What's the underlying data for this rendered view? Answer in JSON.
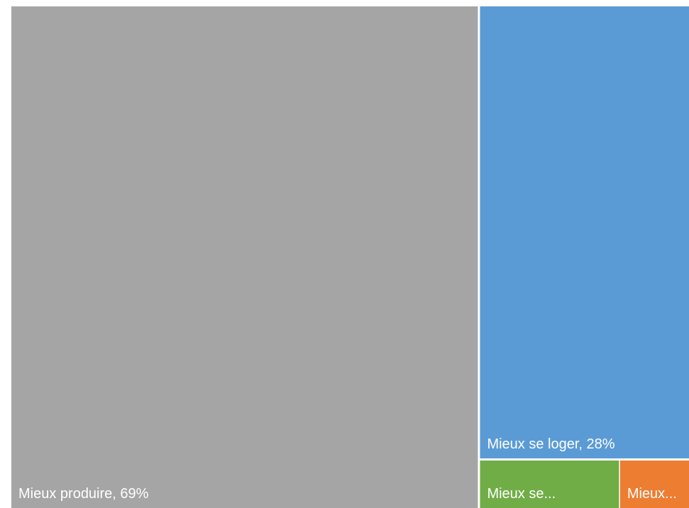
{
  "chart_data": {
    "type": "treemap",
    "title": "",
    "items": [
      {
        "name": "Mieux produire",
        "value": 69,
        "label": "Mieux produire, 69%",
        "color": "#a5a5a5"
      },
      {
        "name": "Mieux se loger",
        "value": 28,
        "label": "Mieux se loger, 28%",
        "color": "#5b9bd5"
      },
      {
        "name": "Mieux se...",
        "value": 2,
        "label": "Mieux se...",
        "color": "#70ad47"
      },
      {
        "name": "Mieux...",
        "value": 1,
        "label": "Mieux...",
        "color": "#ed7d31"
      }
    ]
  }
}
